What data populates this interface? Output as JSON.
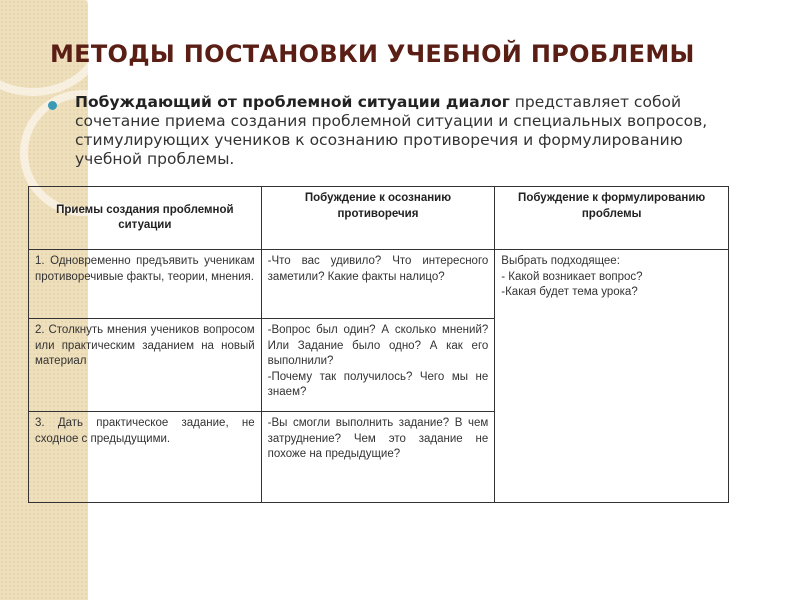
{
  "title": "МЕТОДЫ ПОСТАНОВКИ УЧЕБНОЙ ПРОБЛЕМЫ",
  "intro": {
    "bold": "Побуждающий от проблемной ситуации диалог",
    "text": " представляет собой сочетание приема создания проблемной ситуации и специальных вопросов, стимулирующих учеников к осознанию противоречия и формулированию учебной проблемы."
  },
  "table": {
    "headers": [
      "Приемы создания проблемной ситуации",
      "Побуждение к осознанию противоречия",
      "Побуждение к формулированию проблемы"
    ],
    "rows": [
      {
        "method": "1. Одновременно предъявить ученикам противоречивые факты, теории, мнения.",
        "prompts": [
          "-Что вас удивило? Что интересного заметили? Какие факты налицо?"
        ]
      },
      {
        "method": "2. Столкнуть мнения учеников вопросом или практическим заданием на новый материал",
        "prompts": [
          "-Вопрос был один? А сколько мнений? Или Задание было одно? А как его выполнили?",
          "-Почему так получилось? Чего мы не знаем?"
        ]
      },
      {
        "method": "3. Дать практическое задание, не сходное с предыдущими.",
        "prompts": [
          "-Вы смогли выполнить задание? В чем затруднение? Чем это задание не похоже на предыдущие?"
        ]
      }
    ],
    "formulation": [
      "Выбрать подходящее:",
      "- Какой возникает вопрос?",
      "-Какая будет тема урока?"
    ]
  },
  "colors": {
    "title": "#5a1e14",
    "bullet": "#3a9ab5",
    "sidebar": "#efe0bd"
  }
}
